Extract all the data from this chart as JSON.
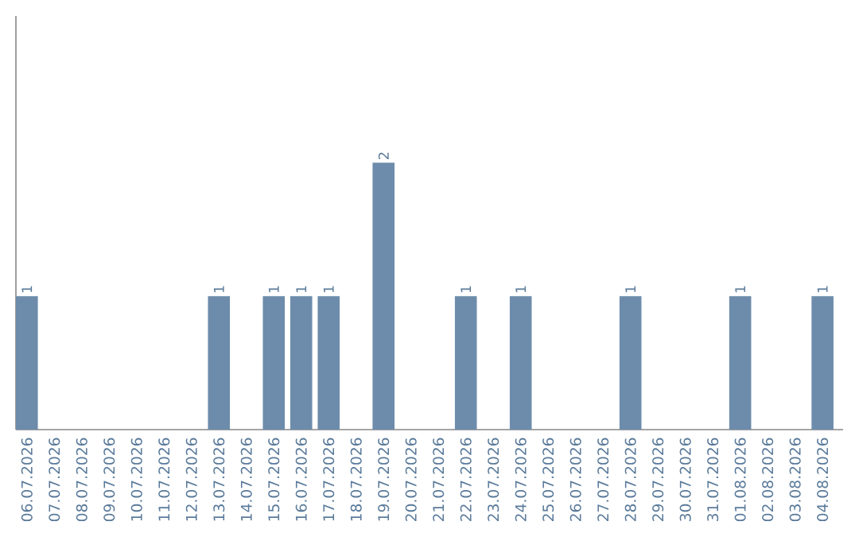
{
  "chart_data": {
    "type": "bar",
    "categories": [
      "06.07.2026",
      "07.07.2026",
      "08.07.2026",
      "09.07.2026",
      "10.07.2026",
      "11.07.2026",
      "12.07.2026",
      "13.07.2026",
      "14.07.2026",
      "15.07.2026",
      "16.07.2026",
      "17.07.2026",
      "18.07.2026",
      "19.07.2026",
      "20.07.2026",
      "21.07.2026",
      "22.07.2026",
      "23.07.2026",
      "24.07.2026",
      "25.07.2026",
      "26.07.2026",
      "27.07.2026",
      "28.07.2026",
      "29.07.2026",
      "30.07.2026",
      "31.07.2026",
      "01.08.2026",
      "02.08.2026",
      "03.08.2026",
      "04.08.2026"
    ],
    "values": [
      1,
      0,
      0,
      0,
      0,
      0,
      0,
      1,
      0,
      1,
      1,
      1,
      0,
      2,
      0,
      0,
      1,
      0,
      1,
      0,
      0,
      0,
      1,
      0,
      0,
      0,
      1,
      0,
      0,
      1
    ],
    "value_labels": [
      "1",
      null,
      null,
      null,
      null,
      null,
      null,
      "1",
      null,
      "1",
      "1",
      "1",
      null,
      "2",
      null,
      null,
      "1",
      null,
      "1",
      null,
      null,
      null,
      "1",
      null,
      null,
      null,
      "1",
      null,
      null,
      "1"
    ],
    "color": "#6d8cab",
    "ylim": [
      0,
      3.1
    ],
    "tick_labels": "x",
    "grid": false
  }
}
